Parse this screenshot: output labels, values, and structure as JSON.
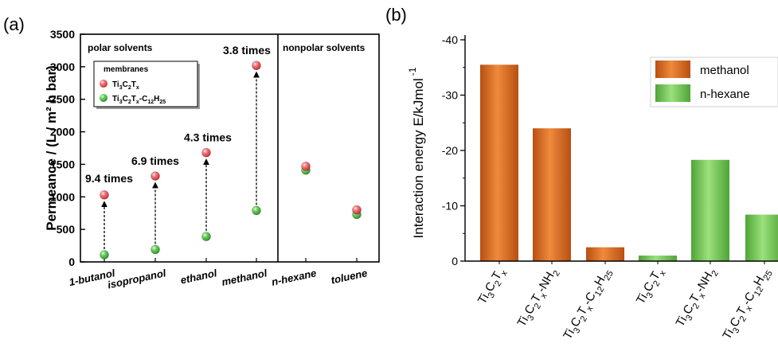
{
  "panel_a_label": "(a)",
  "panel_b_label": "(b)",
  "chart_data": [
    {
      "type": "scatter",
      "ylabel": "Permeance / (L / m² h bar)",
      "ylim": [
        0,
        3500
      ],
      "yticks": [
        0,
        500,
        1000,
        1500,
        2000,
        2500,
        3000,
        3500
      ],
      "categories": [
        "1-butanol",
        "isopropanol",
        "ethanol",
        "methanol",
        "n-hexane",
        "toluene"
      ],
      "region_labels": [
        "polar solvents",
        "nonpolar solvents"
      ],
      "legend_title": "membranes",
      "legend_placement": "top-left",
      "series": [
        {
          "name": "Ti3C2Tx",
          "color": "#e8434a",
          "values": [
            1030,
            1320,
            1680,
            3020,
            1470,
            800
          ]
        },
        {
          "name": "Ti3C2Tx-C12H25",
          "color": "#3fae3a",
          "values": [
            110,
            190,
            390,
            790,
            1410,
            730
          ]
        }
      ],
      "annotations": [
        "9.4 times",
        "6.9 times",
        "4.3 times",
        "3.8 times"
      ],
      "grid": false
    },
    {
      "type": "bar",
      "ylabel": "Interaction energy E/kJmol",
      "ylabel_exponent": "-1",
      "ylim": [
        0,
        -40
      ],
      "yticks": [
        0,
        -10,
        -20,
        -30,
        -40
      ],
      "categories": [
        "Ti3C2Tx",
        "Ti3C2Tx-NH2",
        "Ti3C2Tx-C12H25",
        "Ti3C2Tx",
        "Ti3C2Tx-NH2",
        "Ti3C2Tx-C12H25"
      ],
      "values": [
        -35.5,
        -24,
        -2.5,
        -1,
        -18.3,
        -8.4
      ],
      "bar_series": [
        "methanol",
        "methanol",
        "methanol",
        "n-hexane",
        "n-hexane",
        "n-hexane"
      ],
      "series": [
        {
          "name": "methanol",
          "color": "#d9661c"
        },
        {
          "name": "n-hexane",
          "color": "#6cc04a"
        }
      ],
      "legend_placement": "top-right",
      "grid": false
    }
  ]
}
